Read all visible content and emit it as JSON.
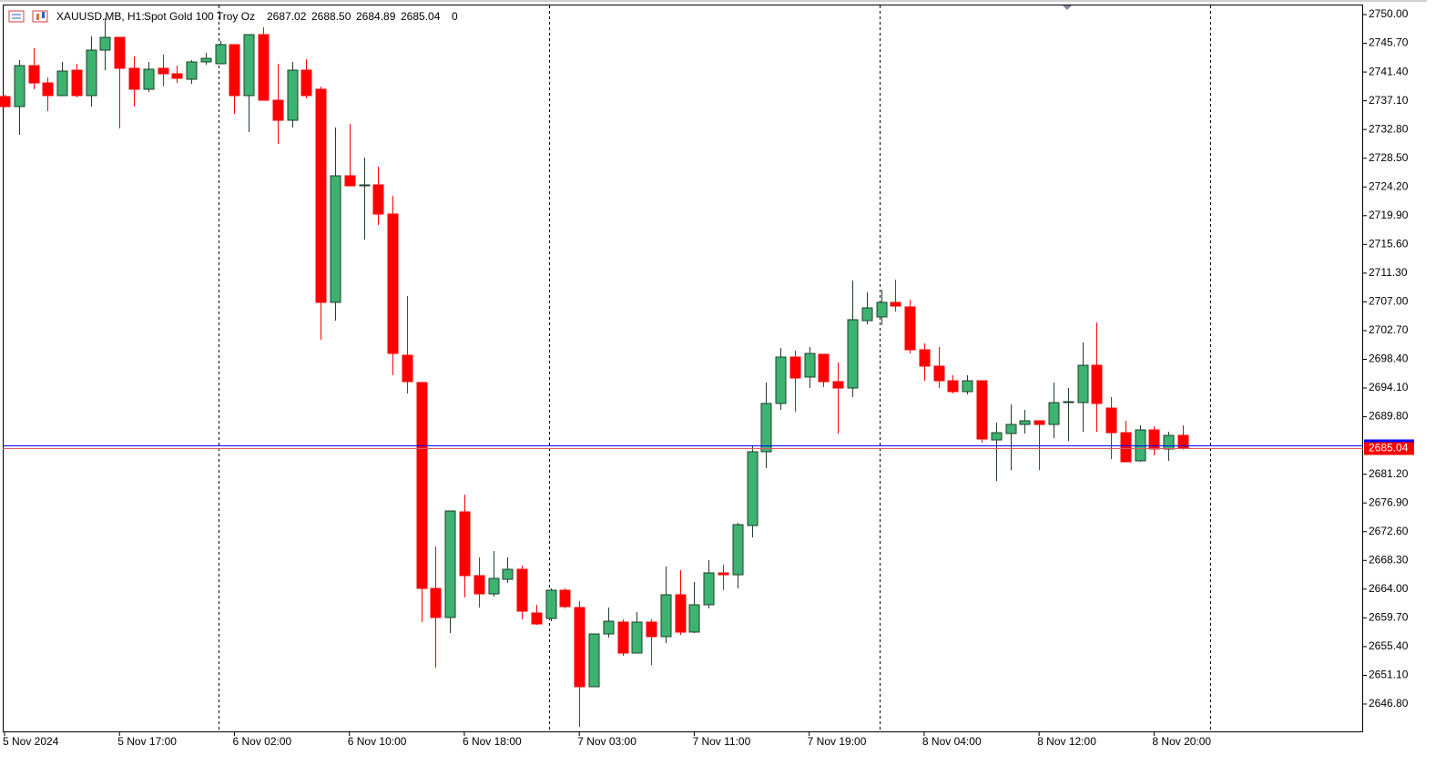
{
  "chart_data": {
    "type": "candlestick",
    "title": "XAUUSD.MB, H1:",
    "subtitle": "Spot Gold 100 Troy Oz",
    "header_ohlc": [
      "2687.02",
      "2688.50",
      "2684.89",
      "2685.04"
    ],
    "header_volume": "0",
    "categories": [
      "5 Nov 2024",
      null,
      null,
      null,
      null,
      null,
      null,
      null,
      "5 Nov 17:00",
      null,
      null,
      null,
      null,
      null,
      null,
      null,
      "6 Nov 02:00",
      null,
      null,
      null,
      null,
      null,
      null,
      null,
      "6 Nov 10:00",
      null,
      null,
      null,
      null,
      null,
      null,
      null,
      "6 Nov 18:00",
      null,
      null,
      null,
      null,
      null,
      null,
      null,
      "7 Nov 03:00",
      null,
      null,
      null,
      null,
      null,
      null,
      null,
      "7 Nov 11:00",
      null,
      null,
      null,
      null,
      null,
      null,
      null,
      "7 Nov 19:00",
      null,
      null,
      null,
      null,
      null,
      null,
      null,
      "8 Nov 04:00",
      null,
      null,
      null,
      null,
      null,
      null,
      null,
      "8 Nov 12:00",
      null,
      null,
      null,
      null,
      null,
      null,
      null,
      "8 Nov 20:00",
      null,
      null
    ],
    "open": [
      2737.73,
      2736.23,
      2742.36,
      2739.77,
      2737.87,
      2741.68,
      2737.87,
      2744.68,
      2746.59,
      2741.96,
      2738.82,
      2741.96,
      2741.14,
      2740.32,
      2742.91,
      2742.64,
      2745.5,
      2737.87,
      2747.0,
      2737.18,
      2734.18,
      2741.68,
      2738.82,
      2706.92,
      2725.87,
      2724.37,
      2724.51,
      2720.14,
      2699.01,
      2694.92,
      2664.11,
      2659.75,
      2675.56,
      2666.02,
      2663.29,
      2665.47,
      2666.97,
      2660.43,
      2659.61,
      2663.84,
      2661.25,
      2649.39,
      2657.29,
      2659.07,
      2654.43,
      2659.07,
      2656.89,
      2663.16,
      2657.57,
      2661.66,
      2666.43,
      2666.15,
      2673.52,
      2684.56,
      2691.79,
      2698.74,
      2695.74,
      2699.15,
      2695.06,
      2694.1,
      2704.19,
      2704.74,
      2706.92,
      2706.24,
      2699.83,
      2697.38,
      2695.19,
      2693.56,
      2695.19,
      2686.33,
      2687.29,
      2688.65,
      2689.2,
      2688.65,
      2691.92,
      2691.92,
      2697.51,
      2691.1,
      2687.42,
      2683.2,
      2687.83,
      2684.97,
      2687.02
    ],
    "high": [
      2738.0,
      2743.18,
      2744.95,
      2740.59,
      2742.91,
      2742.64,
      2746.73,
      2749.45,
      2746.59,
      2743.73,
      2742.91,
      2744.0,
      2742.36,
      2743.18,
      2744.27,
      2746.05,
      2745.5,
      2747.0,
      2748.09,
      2742.64,
      2742.91,
      2743.32,
      2739.23,
      2733.09,
      2733.64,
      2728.59,
      2727.23,
      2722.87,
      2707.87,
      2694.92,
      2670.38,
      2675.7,
      2678.15,
      2668.75,
      2669.7,
      2668.75,
      2667.52,
      2661.66,
      2664.11,
      2664.11,
      2662.2,
      2657.29,
      2661.25,
      2659.48,
      2660.57,
      2659.48,
      2667.38,
      2666.84,
      2665.06,
      2668.34,
      2667.66,
      2673.93,
      2685.38,
      2694.92,
      2700.1,
      2699.69,
      2700.24,
      2699.15,
      2697.92,
      2710.19,
      2708.42,
      2708.83,
      2710.33,
      2707.33,
      2700.78,
      2700.24,
      2696.01,
      2696.01,
      2695.19,
      2688.92,
      2691.65,
      2690.83,
      2689.2,
      2694.92,
      2694.1,
      2700.92,
      2703.92,
      2692.74,
      2689.2,
      2688.51,
      2688.38,
      2687.56,
      2688.5
    ],
    "low": [
      2736.09,
      2732.0,
      2738.82,
      2735.55,
      2737.87,
      2737.59,
      2736.23,
      2741.68,
      2732.96,
      2736.23,
      2738.41,
      2739.23,
      2739.77,
      2739.64,
      2742.5,
      2742.64,
      2735.14,
      2732.41,
      2737.18,
      2730.64,
      2733.09,
      2737.46,
      2701.33,
      2704.19,
      2724.37,
      2716.33,
      2718.51,
      2696.01,
      2693.29,
      2659.07,
      2652.25,
      2657.43,
      2662.75,
      2661.25,
      2662.88,
      2664.93,
      2659.48,
      2658.66,
      2659.2,
      2661.11,
      2643.39,
      2649.39,
      2656.75,
      2654.02,
      2654.43,
      2652.66,
      2655.93,
      2657.16,
      2657.43,
      2661.11,
      2663.84,
      2664.11,
      2671.75,
      2682.11,
      2690.83,
      2690.56,
      2694.1,
      2694.24,
      2687.29,
      2692.74,
      2703.65,
      2703.51,
      2705.55,
      2699.28,
      2695.19,
      2694.1,
      2693.29,
      2693.15,
      2685.92,
      2680.2,
      2681.83,
      2687.29,
      2681.83,
      2686.61,
      2686.2,
      2687.56,
      2687.56,
      2683.47,
      2683.06,
      2683.06,
      2684.01,
      2683.2,
      2684.89
    ],
    "close": [
      2736.23,
      2742.36,
      2739.77,
      2737.87,
      2741.55,
      2737.87,
      2744.68,
      2746.59,
      2741.96,
      2738.82,
      2741.82,
      2741.14,
      2740.46,
      2742.91,
      2743.45,
      2745.5,
      2737.87,
      2747.0,
      2737.18,
      2734.18,
      2741.68,
      2737.87,
      2706.92,
      2725.87,
      2724.37,
      2724.51,
      2720.14,
      2699.28,
      2695.06,
      2664.11,
      2659.75,
      2675.7,
      2666.02,
      2663.29,
      2665.61,
      2666.97,
      2660.7,
      2658.79,
      2663.84,
      2661.38,
      2649.39,
      2657.29,
      2659.2,
      2654.43,
      2659.07,
      2656.89,
      2663.16,
      2657.57,
      2661.66,
      2666.43,
      2666.15,
      2673.65,
      2684.56,
      2691.79,
      2698.74,
      2695.6,
      2699.28,
      2695.06,
      2694.1,
      2704.33,
      2706.1,
      2706.92,
      2706.37,
      2699.83,
      2697.38,
      2695.19,
      2693.56,
      2695.19,
      2686.47,
      2687.42,
      2688.65,
      2689.2,
      2688.65,
      2691.92,
      2692.06,
      2697.51,
      2691.79,
      2687.42,
      2683.06,
      2687.83,
      2684.97,
      2687.01,
      2685.04
    ],
    "up_color": "#3cb371",
    "down_color": "#ff0000",
    "bid": 2685.04,
    "bid_color": "#e05a5a",
    "ask": 2685.45,
    "ask_color": "#0000ff",
    "ylim": [
      2642.57,
      2751.5
    ],
    "yticks": [
      {
        "value": 2750,
        "label": "2750.00"
      },
      {
        "value": 2745.7,
        "label": "2745.70"
      },
      {
        "value": 2741.4,
        "label": "2741.40"
      },
      {
        "value": 2737.1,
        "label": "2737.10"
      },
      {
        "value": 2732.8,
        "label": "2732.80"
      },
      {
        "value": 2728.5,
        "label": "2728.50"
      },
      {
        "value": 2724.2,
        "label": "2724.20"
      },
      {
        "value": 2719.9,
        "label": "2719.90"
      },
      {
        "value": 2715.6,
        "label": "2715.60"
      },
      {
        "value": 2711.3,
        "label": "2711.30"
      },
      {
        "value": 2707,
        "label": "2707.00"
      },
      {
        "value": 2702.7,
        "label": "2702.70"
      },
      {
        "value": 2698.4,
        "label": "2698.40"
      },
      {
        "value": 2694.1,
        "label": "2694.10"
      },
      {
        "value": 2689.8,
        "label": "2689.80"
      },
      {
        "value": 2681.2,
        "label": "2681.20"
      },
      {
        "value": 2676.9,
        "label": "2676.90"
      },
      {
        "value": 2672.6,
        "label": "2672.60"
      },
      {
        "value": 2668.3,
        "label": "2668.30"
      },
      {
        "value": 2664,
        "label": "2664.00"
      },
      {
        "value": 2659.7,
        "label": "2659.70"
      },
      {
        "value": 2655.4,
        "label": "2655.40"
      },
      {
        "value": 2651.1,
        "label": "2651.10"
      },
      {
        "value": 2646.8,
        "label": "2646.80"
      }
    ],
    "grid": false
  }
}
